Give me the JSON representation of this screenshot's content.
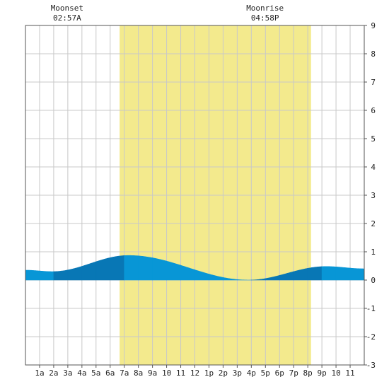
{
  "chart_data": {
    "type": "area",
    "title": "",
    "xlabel": "",
    "ylabel": "",
    "x_tick_labels": [
      "1a",
      "2a",
      "3a",
      "4a",
      "5a",
      "6a",
      "7a",
      "8a",
      "9a",
      "10",
      "11",
      "12",
      "1p",
      "2p",
      "3p",
      "4p",
      "5p",
      "6p",
      "7p",
      "8p",
      "9p",
      "10",
      "11"
    ],
    "xlim": [
      0,
      24
    ],
    "ylim": [
      -3,
      9
    ],
    "y_ticks": [
      -3,
      -2,
      -1,
      0,
      1,
      2,
      3,
      4,
      5,
      6,
      7,
      8,
      9
    ],
    "grid": true,
    "daylight": {
      "start_hour": 6.67,
      "end_hour": 20.23
    },
    "moon_events": [
      {
        "label": "Moonset",
        "time": "02:57A",
        "hour": 2.95
      },
      {
        "label": "Moonrise",
        "time": "04:58P",
        "hour": 16.97
      }
    ],
    "tide_extremes": [
      {
        "hour": 1.9,
        "height": 0.3,
        "type": "low"
      },
      {
        "hour": 7.3,
        "height": 0.87,
        "type": "high"
      },
      {
        "hour": 15.8,
        "height": 0.0,
        "type": "low"
      },
      {
        "hour": 21.3,
        "height": 0.48,
        "type": "high"
      }
    ],
    "series": [
      {
        "values_hour": [
          0,
          1.9,
          7.3,
          15.8,
          21.3,
          24
        ],
        "values_height": [
          0.35,
          0.3,
          0.87,
          0.0,
          0.48,
          0.4
        ]
      }
    ],
    "colors": {
      "daylight": "#f3ea8d",
      "tide_light": "#0896d6",
      "tide_dark": "#0877b5",
      "grid": "#c8c8c8",
      "frame": "#555555"
    }
  }
}
